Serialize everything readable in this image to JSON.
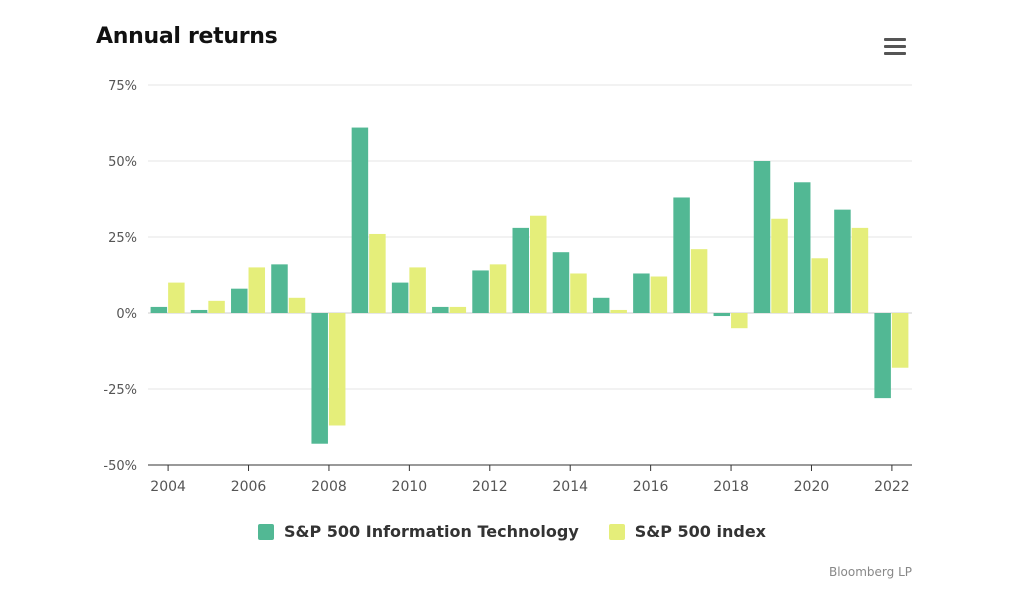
{
  "chart_data": {
    "type": "bar",
    "title": "Annual returns",
    "categories": [
      "2004",
      "2005",
      "2006",
      "2007",
      "2008",
      "2009",
      "2010",
      "2011",
      "2012",
      "2013",
      "2014",
      "2015",
      "2016",
      "2017",
      "2018",
      "2019",
      "2020",
      "2021",
      "2022"
    ],
    "x_tick_labels": [
      "2004",
      "2006",
      "2008",
      "2010",
      "2012",
      "2014",
      "2016",
      "2018",
      "2020",
      "2022"
    ],
    "y_ticks": [
      75,
      50,
      25,
      0,
      -25,
      -50
    ],
    "y_tick_labels": [
      "75%",
      "50%",
      "25%",
      "0%",
      "-25%",
      "-50%"
    ],
    "ylim": [
      -50,
      75
    ],
    "grid": true,
    "legend_position": "bottom",
    "series": [
      {
        "name": "S&P 500 Information Technology",
        "color": "#52b894",
        "values": [
          2,
          1,
          8,
          16,
          -43,
          61,
          10,
          2,
          14,
          28,
          20,
          5,
          13,
          38,
          -1,
          50,
          43,
          34,
          -28
        ]
      },
      {
        "name": "S&P 500 index",
        "color": "#e5ee7a",
        "values": [
          10,
          4,
          15,
          5,
          -37,
          26,
          15,
          2,
          16,
          32,
          13,
          1,
          12,
          21,
          -5,
          31,
          18,
          28,
          -18
        ]
      }
    ]
  },
  "source": "Bloomberg LP",
  "menu_icon": "hamburger-menu-icon"
}
